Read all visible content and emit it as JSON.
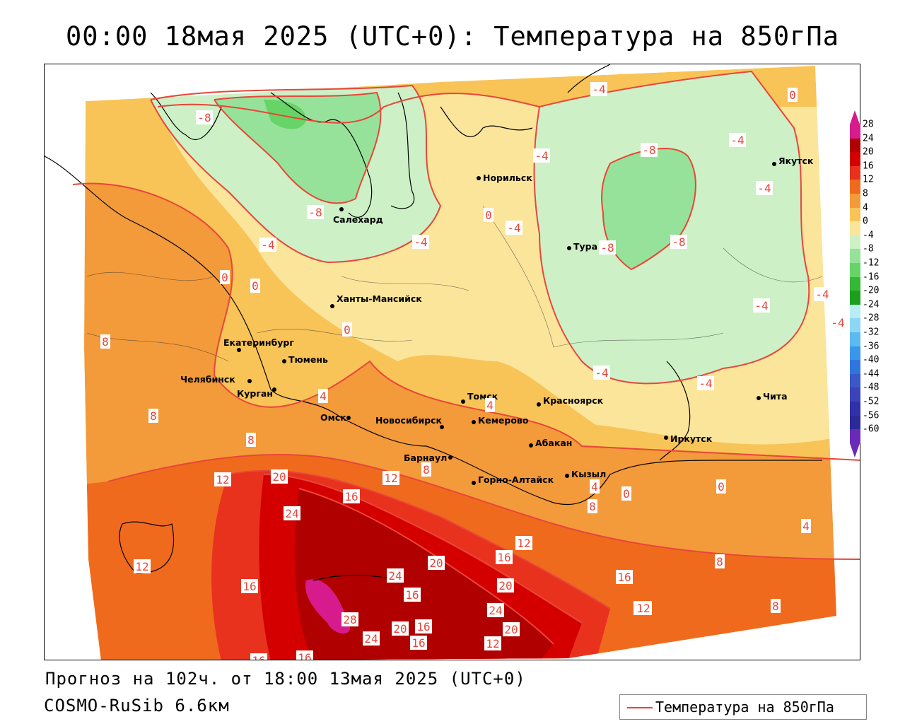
{
  "title": "00:00 18мая 2025 (UTC+0): Температура на 850гПа",
  "forecast_line": "Прогноз на 102ч. от 18:00 13мая 2025 (UTC+0)",
  "model_line": "COSMO-RuSib 6.6км",
  "legend_label": "Температура на 850гПа",
  "colors": {
    "contour": "#e8463a",
    "grey_outside": "#ffffff"
  },
  "color_scale": [
    {
      "value": "28",
      "color": "#d81b8c"
    },
    {
      "value": "24",
      "color": "#b00000"
    },
    {
      "value": "20",
      "color": "#d40000"
    },
    {
      "value": "16",
      "color": "#e8321e"
    },
    {
      "value": "12",
      "color": "#f06a1e"
    },
    {
      "value": "8",
      "color": "#f39a3a"
    },
    {
      "value": "4",
      "color": "#f8c458"
    },
    {
      "value": "0",
      "color": "#fbe59a"
    },
    {
      "value": "-4",
      "color": "#cdf0c6"
    },
    {
      "value": "-8",
      "color": "#97e29a"
    },
    {
      "value": "-12",
      "color": "#66d466"
    },
    {
      "value": "-16",
      "color": "#34b934"
    },
    {
      "value": "-20",
      "color": "#1e9e1e"
    },
    {
      "value": "-24",
      "color": "#b8ecf6"
    },
    {
      "value": "-28",
      "color": "#8cd8f4"
    },
    {
      "value": "-32",
      "color": "#5cbaf0"
    },
    {
      "value": "-36",
      "color": "#3a96ea"
    },
    {
      "value": "-40",
      "color": "#2e76de"
    },
    {
      "value": "-44",
      "color": "#3a58c8"
    },
    {
      "value": "-48",
      "color": "#3a44b8"
    },
    {
      "value": "-52",
      "color": "#3030a8"
    },
    {
      "value": "-56",
      "color": "#2a2a98"
    },
    {
      "value": "-60",
      "color": "#6a2ab8"
    }
  ],
  "cities": [
    {
      "name": "Салехард"
    },
    {
      "name": "Норильск"
    },
    {
      "name": "Якутск"
    },
    {
      "name": "Тура"
    },
    {
      "name": "Ханты-Мансийск"
    },
    {
      "name": "Екатеринбург"
    },
    {
      "name": "Тюмень"
    },
    {
      "name": "Челябинск"
    },
    {
      "name": "Курган"
    },
    {
      "name": "Омск"
    },
    {
      "name": "Новосибирск"
    },
    {
      "name": "Томск"
    },
    {
      "name": "Кемерово"
    },
    {
      "name": "Красноярск"
    },
    {
      "name": "Абакан"
    },
    {
      "name": "Барнаул"
    },
    {
      "name": "Горно-Алтайск"
    },
    {
      "name": "Кызыл"
    },
    {
      "name": "Иркутск"
    },
    {
      "name": "Чита"
    }
  ],
  "isotherm_labels": [
    "-8",
    "-8",
    "-4",
    "-4",
    "0",
    "-8",
    "-4",
    "-4",
    "-4",
    "-4",
    "-8",
    "-8",
    "-4",
    "-4",
    "0",
    "-4",
    "-4",
    "0",
    "0",
    "0",
    "-4",
    "-4",
    "-4",
    "8",
    "4",
    "4",
    "8",
    "8",
    "12",
    "20",
    "16",
    "12",
    "8",
    "0",
    "4",
    "8",
    "0",
    "4",
    "24",
    "12",
    "16",
    "8",
    "16",
    "24",
    "20",
    "20",
    "16",
    "12",
    "8",
    "12",
    "16",
    "28",
    "24",
    "20",
    "16",
    "16",
    "12",
    "24",
    "20",
    "12",
    "16",
    "16"
  ]
}
